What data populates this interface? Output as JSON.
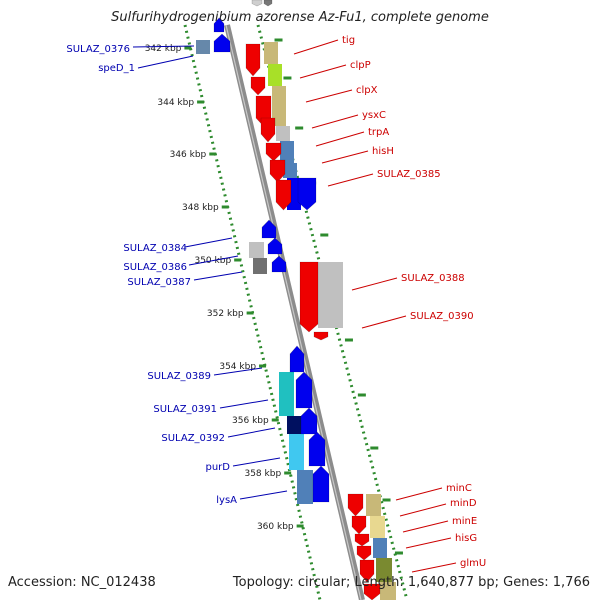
{
  "title": "Sulfurihydrogenibium azorense Az-Fu1, complete genome",
  "footer": {
    "accession": "Accession: NC_012438",
    "topology": "Topology: circular; Length: 1,640,877 bp; Genes: 1,766"
  },
  "colors": {
    "backbone": "#8c8c8c",
    "scale_dots": "#2e8b2e",
    "forward_label": "#cc0000",
    "reverse_label": "#0000b0",
    "forward_arrow": "#ee0000",
    "reverse_arrow": "#0000ee"
  },
  "scale_ticks": [
    "342 kbp",
    "344 kbp",
    "346 kbp",
    "348 kbp",
    "350 kbp",
    "352 kbp",
    "354 kbp",
    "356 kbp",
    "358 kbp",
    "360 kbp"
  ],
  "forward_genes": [
    {
      "label": "tig",
      "color": "#c8b878"
    },
    {
      "label": "clpP",
      "color": "#a8e028"
    },
    {
      "label": "clpX",
      "color": "#c8b878"
    },
    {
      "label": "ysxC",
      "color": "#c0c0c0"
    },
    {
      "label": "trpA",
      "color": "#5080b8"
    },
    {
      "label": "hisH",
      "color": "#5080b8"
    },
    {
      "label": "SULAZ_0385",
      "color": "#0000ee"
    },
    {
      "label": "SULAZ_0388",
      "color": "#c0c0c0"
    },
    {
      "label": "SULAZ_0390",
      "color": "#c0c0c0"
    },
    {
      "label": "minC",
      "color": "#c8b878"
    },
    {
      "label": "minD",
      "color": "#e8d890"
    },
    {
      "label": "minE",
      "color": "#e8d890"
    },
    {
      "label": "hisG",
      "color": "#5080b8"
    },
    {
      "label": "glmU",
      "color": "#7a8a30"
    }
  ],
  "reverse_genes": [
    {
      "label": "SULAZ_0376",
      "color": "#6688aa"
    },
    {
      "label": "speD_1",
      "color": "#0000ee"
    },
    {
      "label": "SULAZ_0384",
      "color": "#c0c0c0"
    },
    {
      "label": "SULAZ_0386",
      "color": "#c0c0c0"
    },
    {
      "label": "SULAZ_0387",
      "color": "#707070"
    },
    {
      "label": "SULAZ_0389",
      "color": "#20c0c0"
    },
    {
      "label": "SULAZ_0391",
      "color": "#20c0c0"
    },
    {
      "label": "SULAZ_0392",
      "color": "#001060"
    },
    {
      "label": "purD",
      "color": "#40c8f0"
    },
    {
      "label": "lysA",
      "color": "#5080b8"
    }
  ]
}
